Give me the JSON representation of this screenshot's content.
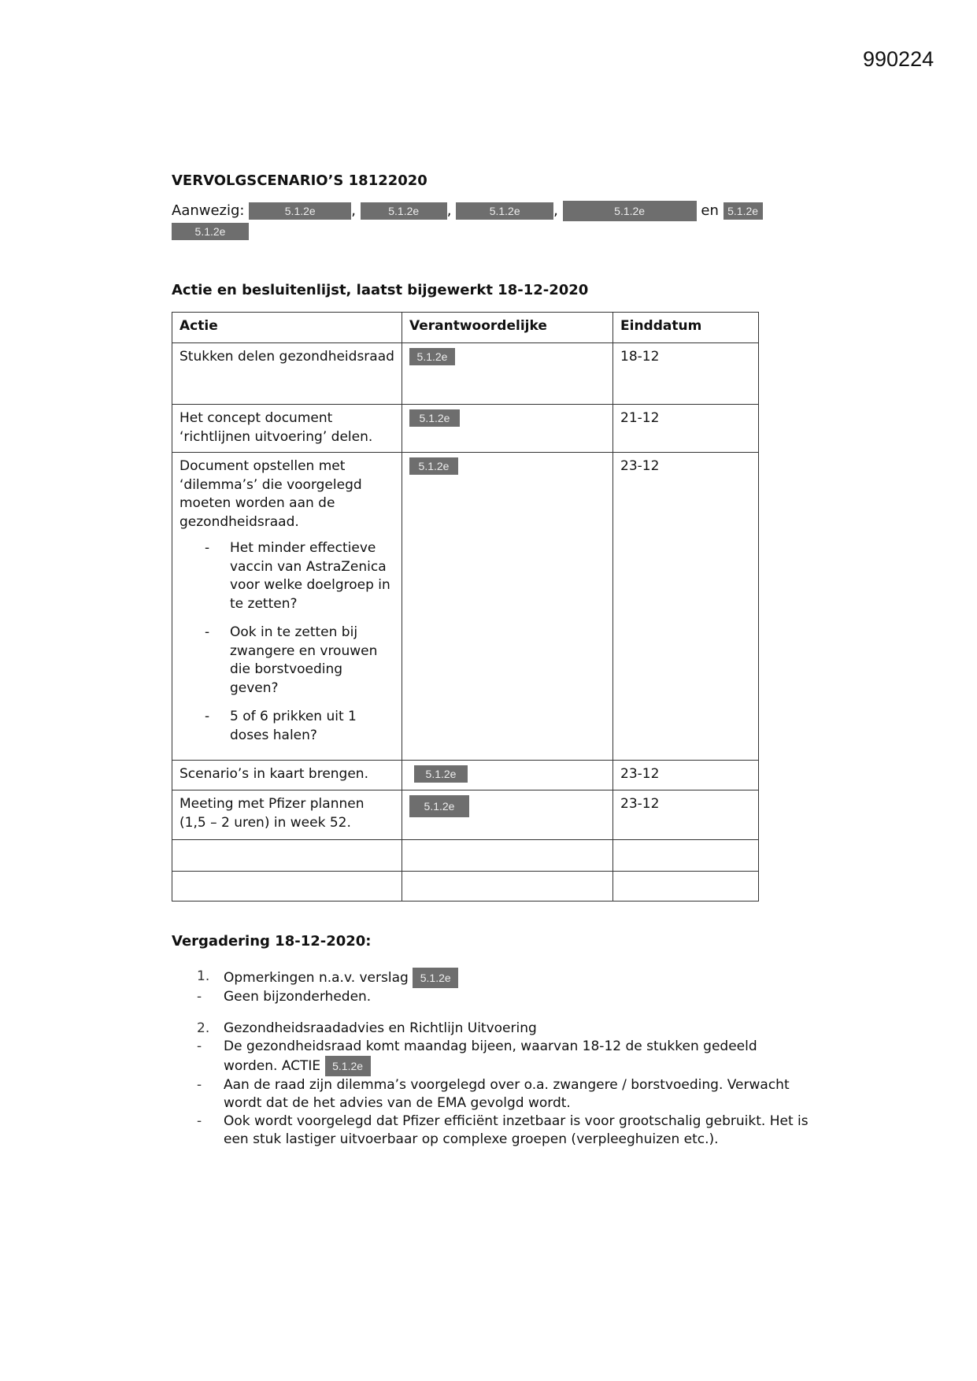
{
  "doc_number": "990224",
  "title": "VERVOLGSCENARIO’S 18122020",
  "attendance": {
    "label": "Aanwezig:",
    "redaction": "5.1.2e",
    "separator": ",",
    "conjunction": "en"
  },
  "action_list": {
    "title": "Actie en besluitenlijst, laatst bijgewerkt 18-12-2020",
    "headers": [
      "Actie",
      "Verantwoordelijke",
      "Einddatum"
    ],
    "rows": [
      {
        "action": "Stukken delen gezondheidsraad",
        "responsible": "5.1.2e",
        "date": "18-12"
      },
      {
        "action": "Het concept document ‘richtlijnen uitvoering’ delen.",
        "responsible": "5.1.2e",
        "date": "21-12"
      },
      {
        "action": "Document opstellen met ‘dilemma’s’ die voorgelegd moeten worden aan de gezondheidsraad.",
        "sub": [
          "Het minder effectieve vaccin van AstraZenica voor welke doelgroep in te zetten?",
          "Ook in te zetten bij zwangere en vrouwen die borstvoeding geven?",
          "5 of 6 prikken uit 1 doses halen?"
        ],
        "responsible": "5.1.2e",
        "date": "23-12"
      },
      {
        "action": "Scenario’s in kaart brengen.",
        "responsible": "5.1.2e",
        "date": "23-12"
      },
      {
        "action": "Meeting met Pfizer plannen (1,5 – 2 uren) in week 52.",
        "responsible": "5.1.2e",
        "date": "23-12"
      }
    ]
  },
  "meeting": {
    "title": "Vergadering 18-12-2020:",
    "item1": {
      "num": "1.",
      "text": "Opmerkingen n.a.v. verslag",
      "redaction": "5.1.2e",
      "bullets": [
        "Geen bijzonderheden."
      ]
    },
    "item2": {
      "num": "2.",
      "text": "Gezondheidsraadadvies en Richtlijn Uitvoering",
      "b1": "De gezondheidsraad komt maandag bijeen, waarvan 18-12 de stukken gedeeld worden. ACTIE",
      "b1_redaction": "5.1.2e",
      "b2": "Aan de raad zijn dilemma’s voorgelegd over o.a. zwangere / borstvoeding. Verwacht wordt dat de het advies van de EMA gevolgd wordt.",
      "b3": "Ook wordt voorgelegd dat Pfizer efficiënt inzetbaar is voor grootschalig gebruikt. Het is een stuk lastiger uitvoerbaar op complexe groepen (verpleeghuizen etc.)."
    },
    "dash": "-"
  }
}
